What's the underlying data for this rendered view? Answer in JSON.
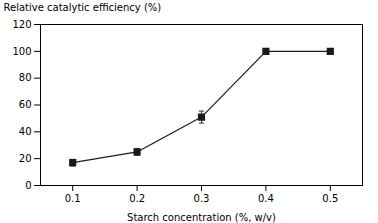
{
  "chart_data": {
    "type": "line",
    "x": [
      0.1,
      0.2,
      0.3,
      0.4,
      0.5
    ],
    "values": [
      17.0,
      25.0,
      51.0,
      100.0,
      100.0
    ],
    "yerr": [
      2.5,
      2.5,
      4.5,
      2.0,
      2.0
    ],
    "xlabel": "Starch concentration (%, w/v)",
    "ylabel": "Relative catalytic efficiency (%)",
    "xlim": [
      0.05,
      0.55
    ],
    "ylim": [
      0,
      120
    ],
    "xticks": [
      0.1,
      0.2,
      0.3,
      0.4,
      0.5
    ],
    "yticks": [
      0,
      20,
      40,
      60,
      80,
      100,
      120
    ],
    "color": "#1a1a1a",
    "marker": "square",
    "grid": false
  }
}
